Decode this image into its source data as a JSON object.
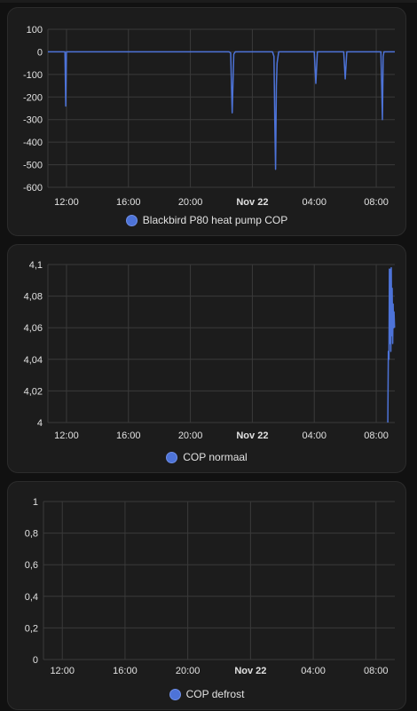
{
  "chart_data": [
    {
      "type": "line",
      "legend": "Blackbird P80 heat pump COP",
      "color": "#4d73d8",
      "ylim": [
        -600,
        100
      ],
      "y_ticks": [
        100,
        0,
        -100,
        -200,
        -300,
        -400,
        -500,
        -600
      ],
      "x_range": [
        10.8,
        33.2
      ],
      "x_ticks": [
        {
          "label": "12:00",
          "h": 12,
          "bold": false
        },
        {
          "label": "16:00",
          "h": 16,
          "bold": false
        },
        {
          "label": "20:00",
          "h": 20,
          "bold": false
        },
        {
          "label": "Nov 22",
          "h": 24,
          "bold": true
        },
        {
          "label": "04:00",
          "h": 28,
          "bold": false
        },
        {
          "label": "08:00",
          "h": 32,
          "bold": false
        }
      ],
      "points": [
        [
          10.8,
          0
        ],
        [
          11.9,
          0
        ],
        [
          11.95,
          -240
        ],
        [
          12.0,
          0
        ],
        [
          22.5,
          0
        ],
        [
          22.6,
          -5
        ],
        [
          22.7,
          -270
        ],
        [
          22.8,
          -10
        ],
        [
          22.9,
          0
        ],
        [
          25.3,
          0
        ],
        [
          25.4,
          -20
        ],
        [
          25.45,
          -300
        ],
        [
          25.5,
          -520
        ],
        [
          25.55,
          -150
        ],
        [
          25.6,
          -50
        ],
        [
          25.7,
          0
        ],
        [
          28.0,
          0
        ],
        [
          28.1,
          -140
        ],
        [
          28.2,
          0
        ],
        [
          29.9,
          0
        ],
        [
          30.0,
          -120
        ],
        [
          30.1,
          0
        ],
        [
          32.3,
          0
        ],
        [
          32.35,
          -150
        ],
        [
          32.4,
          -300
        ],
        [
          32.45,
          -20
        ],
        [
          32.5,
          0
        ],
        [
          33.2,
          0
        ]
      ]
    },
    {
      "type": "line",
      "legend": "COP normaal",
      "color": "#4d73d8",
      "ylim": [
        4,
        4.1
      ],
      "y_ticks": [
        "4,1",
        "4,08",
        "4,06",
        "4,04",
        "4,02",
        "4"
      ],
      "y_values": [
        4.1,
        4.08,
        4.06,
        4.04,
        4.02,
        4
      ],
      "x_range": [
        10.8,
        33.2
      ],
      "x_ticks": [
        {
          "label": "12:00",
          "h": 12,
          "bold": false
        },
        {
          "label": "16:00",
          "h": 16,
          "bold": false
        },
        {
          "label": "20:00",
          "h": 20,
          "bold": false
        },
        {
          "label": "Nov 22",
          "h": 24,
          "bold": true
        },
        {
          "label": "04:00",
          "h": 28,
          "bold": false
        },
        {
          "label": "08:00",
          "h": 32,
          "bold": false
        }
      ],
      "points": [
        [
          32.75,
          4.0
        ],
        [
          32.78,
          4.045
        ],
        [
          32.82,
          4.04
        ],
        [
          32.85,
          4.097
        ],
        [
          32.88,
          4.05
        ],
        [
          32.91,
          4.097
        ],
        [
          32.94,
          4.045
        ],
        [
          32.97,
          4.098
        ],
        [
          33.0,
          4.055
        ],
        [
          33.03,
          4.085
        ],
        [
          33.06,
          4.05
        ],
        [
          33.09,
          4.075
        ],
        [
          33.12,
          4.06
        ],
        [
          33.15,
          4.07
        ],
        [
          33.18,
          4.06
        ]
      ]
    },
    {
      "type": "line",
      "legend": "COP defrost",
      "color": "#4d73d8",
      "ylim": [
        0,
        1
      ],
      "y_ticks": [
        "1",
        "0,8",
        "0,6",
        "0,4",
        "0,2",
        "0"
      ],
      "y_values": [
        1,
        0.8,
        0.6,
        0.4,
        0.2,
        0
      ],
      "x_range": [
        10.8,
        33.2
      ],
      "x_ticks": [
        {
          "label": "12:00",
          "h": 12,
          "bold": false
        },
        {
          "label": "16:00",
          "h": 16,
          "bold": false
        },
        {
          "label": "20:00",
          "h": 20,
          "bold": false
        },
        {
          "label": "Nov 22",
          "h": 24,
          "bold": true
        },
        {
          "label": "04:00",
          "h": 28,
          "bold": false
        },
        {
          "label": "08:00",
          "h": 32,
          "bold": false
        }
      ],
      "points": []
    }
  ]
}
